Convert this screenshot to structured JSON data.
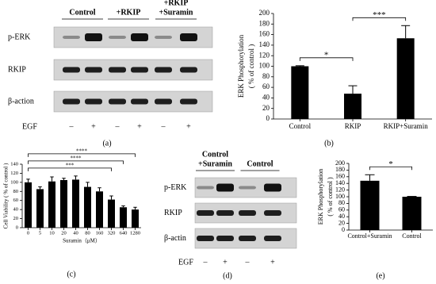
{
  "chart_data": [
    {
      "type": "bar",
      "ylabel": [
        "ERK Phosphorylation",
        "( % of control )"
      ],
      "categories": [
        "Control",
        "RKIP",
        "RKIP+Suramin"
      ],
      "values": [
        100,
        48,
        153
      ],
      "errors": [
        1,
        15,
        24
      ],
      "color": "#000000",
      "ylim": [
        0,
        200
      ],
      "yticks": [
        0,
        20,
        40,
        60,
        80,
        100,
        120,
        140,
        160,
        180,
        200
      ],
      "significance": [
        {
          "text": "*",
          "between": [
            "Control",
            "RKIP"
          ]
        },
        {
          "text": "***",
          "between": [
            "RKIP",
            "RKIP+Suramin"
          ]
        }
      ],
      "caption": "(b)"
    },
    {
      "type": "bar",
      "ylabel": [
        "Cell Viability ( % of control )"
      ],
      "xlabel": "Suramin（μM）",
      "categories": [
        "0",
        "5",
        "10",
        "20",
        "40",
        "80",
        "160",
        "320",
        "640",
        "1280"
      ],
      "values": [
        100,
        85,
        102,
        105,
        106,
        90,
        80,
        62,
        45,
        40
      ],
      "errors": [
        7,
        5,
        10,
        4,
        8,
        10,
        8,
        8,
        3,
        5
      ],
      "color": "#000000",
      "ylim": [
        0,
        140
      ],
      "yticks": [
        0,
        20,
        40,
        60,
        80,
        100,
        120,
        140
      ],
      "significance": [
        {
          "text": "***",
          "between": [
            "0",
            "320"
          ]
        },
        {
          "text": "****",
          "between": [
            "0",
            "640"
          ]
        },
        {
          "text": "****",
          "between": [
            "0",
            "1280"
          ]
        }
      ],
      "caption": "(c)"
    },
    {
      "type": "bar",
      "ylabel": [
        "ERK Phosphorylation",
        "( % of control )"
      ],
      "categories": [
        "Control+Suramin",
        "Control"
      ],
      "values": [
        148,
        100
      ],
      "errors": [
        18,
        1
      ],
      "color": "#000000",
      "ylim": [
        0,
        200
      ],
      "yticks": [
        0,
        20,
        40,
        60,
        80,
        100,
        120,
        140,
        160,
        180,
        200
      ],
      "significance": [
        {
          "text": "*",
          "between": [
            "Control+Suramin",
            "Control"
          ]
        }
      ],
      "caption": "(e)"
    }
  ],
  "blots": [
    {
      "columns": [
        [
          "Control"
        ],
        [
          "+RKIP"
        ],
        [
          "+RKIP",
          "+Suramin"
        ]
      ],
      "rows": [
        "p-ERK",
        "RKIP",
        "β-action"
      ],
      "treatment": "EGF",
      "signs": [
        "–",
        "+",
        "–",
        "+",
        "–",
        "+"
      ],
      "caption": "(a)"
    },
    {
      "columns": [
        [
          "Control",
          "+Suramin"
        ],
        [
          "Control"
        ]
      ],
      "rows": [
        "p-ERK",
        "RKIP",
        "β-actin"
      ],
      "treatment": "EGF",
      "signs": [
        "–",
        "+",
        "–",
        "+"
      ],
      "caption": "(d)"
    }
  ]
}
